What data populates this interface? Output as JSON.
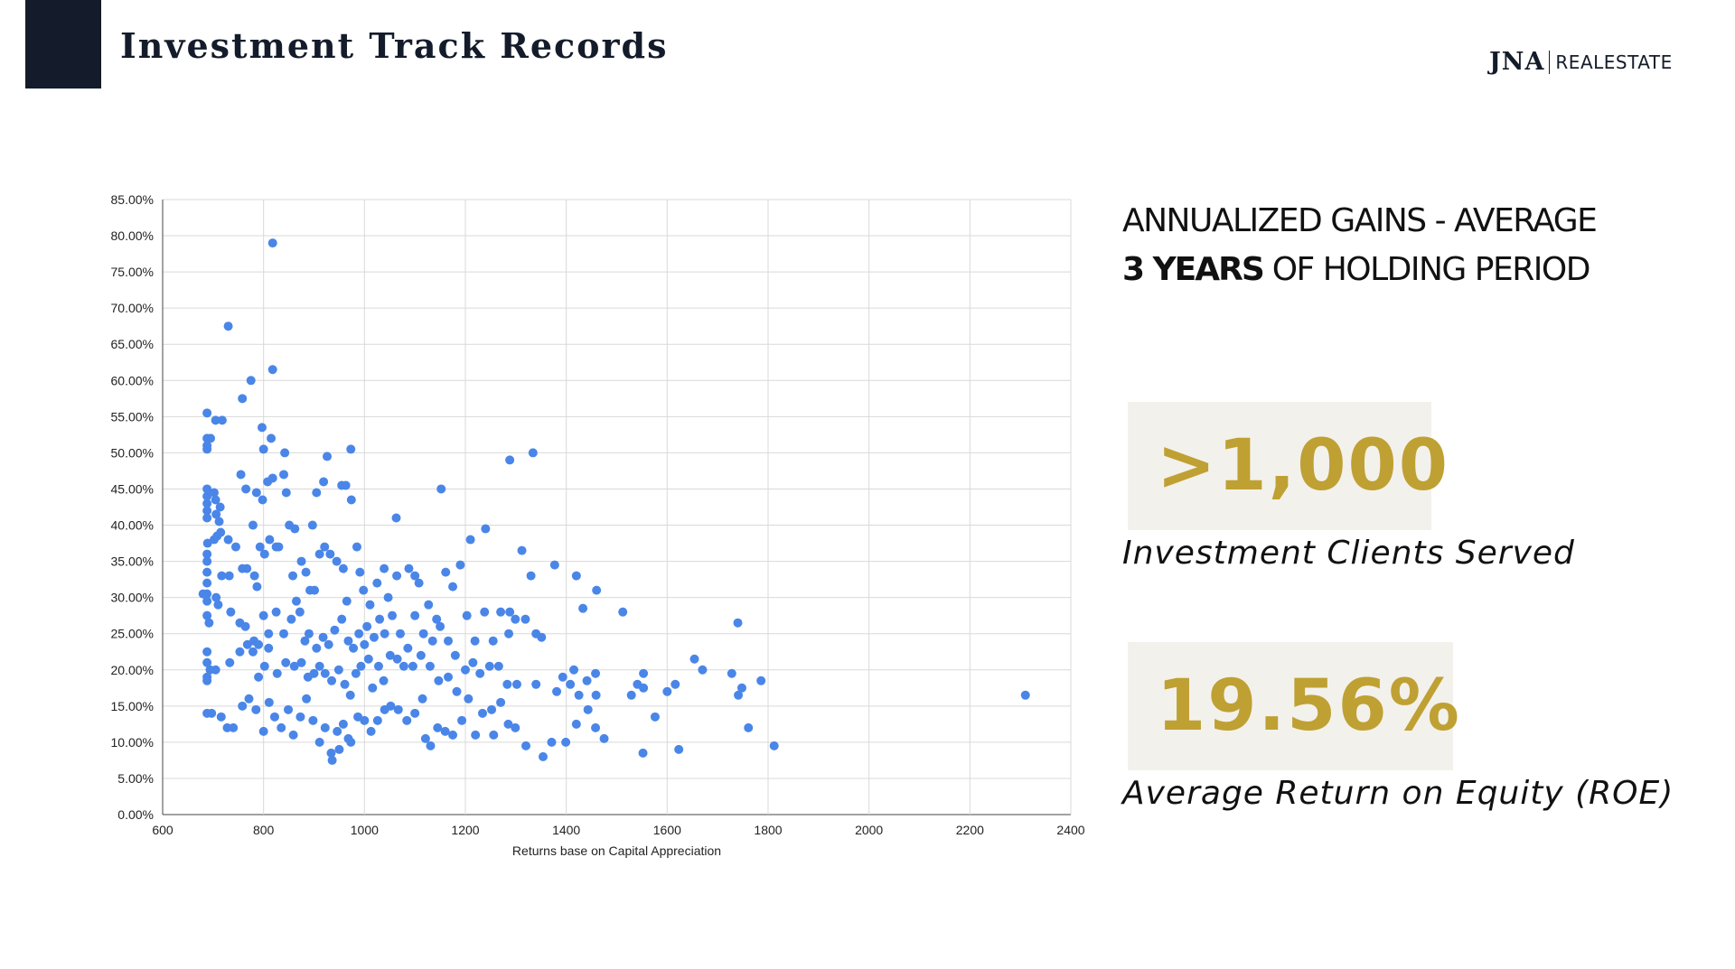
{
  "header": {
    "title": "Investment Track Records"
  },
  "logo": {
    "mark": "JNA",
    "word": "REALESTATE"
  },
  "headline": {
    "line1": "ANNUALIZED GAINS - AVERAGE",
    "line2_bold": "3 YEARS",
    "line2_rest": "OF HOLDING PERIOD"
  },
  "stats": [
    {
      "value": ">1,000",
      "label": "Investment Clients Served"
    },
    {
      "value": "19.56%",
      "label": "Average Return on Equity (ROE)"
    }
  ],
  "colors": {
    "navy": "#141c2b",
    "gold": "#bfa033",
    "stat_bg": "#f3f1eb",
    "point": "#4a86e8"
  },
  "chart_data": {
    "type": "scatter",
    "title": "",
    "xlabel": "Returns base on Capital Appreciation",
    "ylabel": "",
    "xlim": [
      600,
      2400
    ],
    "ylim": [
      0,
      85
    ],
    "x_ticks": [
      "600",
      "800",
      "1000",
      "1200",
      "1400",
      "1600",
      "1800",
      "2000",
      "2200",
      "2400"
    ],
    "y_ticks": [
      "0.00%",
      "5.00%",
      "10.00%",
      "15.00%",
      "20.00%",
      "25.00%",
      "30.00%",
      "35.00%",
      "40.00%",
      "45.00%",
      "50.00%",
      "55.00%",
      "60.00%",
      "65.00%",
      "70.00%",
      "75.00%",
      "80.00%",
      "85.00%"
    ],
    "grid": true,
    "legend": "none",
    "points": [
      [
        818,
        79
      ],
      [
        730,
        67.5
      ],
      [
        818,
        61.5
      ],
      [
        775,
        60
      ],
      [
        758,
        57.5
      ],
      [
        688,
        55.5
      ],
      [
        705,
        54.5
      ],
      [
        718,
        54.5
      ],
      [
        797,
        53.5
      ],
      [
        815,
        52
      ],
      [
        688,
        52
      ],
      [
        695,
        52
      ],
      [
        688,
        51
      ],
      [
        688,
        50.5
      ],
      [
        800,
        50.5
      ],
      [
        842,
        50
      ],
      [
        973,
        50.5
      ],
      [
        926,
        49.5
      ],
      [
        1288,
        49
      ],
      [
        1334,
        50
      ],
      [
        688,
        45
      ],
      [
        688,
        44
      ],
      [
        688,
        43
      ],
      [
        688,
        42
      ],
      [
        688,
        41
      ],
      [
        702,
        44.5
      ],
      [
        705,
        43.5
      ],
      [
        714,
        42.5
      ],
      [
        706,
        41.5
      ],
      [
        712,
        40.5
      ],
      [
        755,
        47
      ],
      [
        765,
        45
      ],
      [
        786,
        44.5
      ],
      [
        798,
        43.5
      ],
      [
        808,
        46
      ],
      [
        818,
        46.5
      ],
      [
        840,
        47
      ],
      [
        845,
        44.5
      ],
      [
        905,
        44.5
      ],
      [
        919,
        46
      ],
      [
        955,
        45.5
      ],
      [
        963,
        45.5
      ],
      [
        974,
        43.5
      ],
      [
        1152,
        45
      ],
      [
        1063,
        41
      ],
      [
        779,
        40
      ],
      [
        851,
        40
      ],
      [
        862,
        39.5
      ],
      [
        897,
        40
      ],
      [
        702,
        38
      ],
      [
        708,
        38.5
      ],
      [
        715,
        39
      ],
      [
        730,
        38
      ],
      [
        745,
        37
      ],
      [
        689,
        37.5
      ],
      [
        688,
        36
      ],
      [
        688,
        35
      ],
      [
        688,
        33.5
      ],
      [
        688,
        32
      ],
      [
        688,
        30.5
      ],
      [
        688,
        29.5
      ],
      [
        680,
        30.5
      ],
      [
        706,
        30
      ],
      [
        717,
        33
      ],
      [
        732,
        33
      ],
      [
        758,
        34
      ],
      [
        767,
        34
      ],
      [
        782,
        33
      ],
      [
        787,
        31.5
      ],
      [
        793,
        37
      ],
      [
        802,
        36
      ],
      [
        812,
        38
      ],
      [
        825,
        37
      ],
      [
        830,
        37
      ],
      [
        858,
        33
      ],
      [
        875,
        35
      ],
      [
        884,
        33.5
      ],
      [
        892,
        31
      ],
      [
        901,
        31
      ],
      [
        911,
        36
      ],
      [
        921,
        37
      ],
      [
        932,
        36
      ],
      [
        945,
        35
      ],
      [
        958,
        34
      ],
      [
        965,
        29.5
      ],
      [
        985,
        37
      ],
      [
        991,
        33.5
      ],
      [
        998,
        31
      ],
      [
        1011,
        29
      ],
      [
        1025,
        32
      ],
      [
        1039,
        34
      ],
      [
        1047,
        30
      ],
      [
        1064,
        33
      ],
      [
        1088,
        34
      ],
      [
        1100,
        33
      ],
      [
        1108,
        32
      ],
      [
        1127,
        29
      ],
      [
        1143,
        27
      ],
      [
        1161,
        33.5
      ],
      [
        1175,
        31.5
      ],
      [
        1190,
        34.5
      ],
      [
        1210,
        38
      ],
      [
        1240,
        39.5
      ],
      [
        1288,
        28
      ],
      [
        1312,
        36.5
      ],
      [
        1330,
        33
      ],
      [
        1377,
        34.5
      ],
      [
        1420,
        33
      ],
      [
        1433,
        28.5
      ],
      [
        1460,
        31
      ],
      [
        1512,
        28
      ],
      [
        1740,
        26.5
      ],
      [
        688,
        27.5
      ],
      [
        692,
        26.5
      ],
      [
        710,
        29
      ],
      [
        735,
        28
      ],
      [
        753,
        26.5
      ],
      [
        764,
        26
      ],
      [
        781,
        24
      ],
      [
        790,
        23.5
      ],
      [
        800,
        27.5
      ],
      [
        810,
        25
      ],
      [
        825,
        28
      ],
      [
        840,
        25
      ],
      [
        855,
        27
      ],
      [
        865,
        29.5
      ],
      [
        872,
        28
      ],
      [
        882,
        24
      ],
      [
        890,
        25
      ],
      [
        905,
        23
      ],
      [
        918,
        24.5
      ],
      [
        929,
        23.5
      ],
      [
        941,
        25.5
      ],
      [
        955,
        27
      ],
      [
        968,
        24
      ],
      [
        978,
        23
      ],
      [
        989,
        25
      ],
      [
        1000,
        23.5
      ],
      [
        1005,
        26
      ],
      [
        1019,
        24.5
      ],
      [
        1030,
        27
      ],
      [
        1040,
        25
      ],
      [
        1055,
        27.5
      ],
      [
        1071,
        25
      ],
      [
        1086,
        23
      ],
      [
        1100,
        27.5
      ],
      [
        1117,
        25
      ],
      [
        1135,
        24
      ],
      [
        1150,
        26
      ],
      [
        1166,
        24
      ],
      [
        1180,
        22
      ],
      [
        1203,
        27.5
      ],
      [
        1219,
        24
      ],
      [
        1238,
        28
      ],
      [
        1255,
        24
      ],
      [
        1270,
        28
      ],
      [
        1286,
        25
      ],
      [
        1299,
        27
      ],
      [
        1319,
        27
      ],
      [
        1340,
        25
      ],
      [
        1351,
        24.5
      ],
      [
        688,
        22.5
      ],
      [
        688,
        21
      ],
      [
        694,
        20
      ],
      [
        688,
        19
      ],
      [
        688,
        18.5
      ],
      [
        705,
        20
      ],
      [
        733,
        21
      ],
      [
        753,
        22.5
      ],
      [
        768,
        23.5
      ],
      [
        779,
        22.5
      ],
      [
        790,
        19
      ],
      [
        802,
        20.5
      ],
      [
        810,
        23
      ],
      [
        827,
        19.5
      ],
      [
        844,
        21
      ],
      [
        861,
        20.5
      ],
      [
        875,
        21
      ],
      [
        888,
        19
      ],
      [
        900,
        19.5
      ],
      [
        911,
        20.5
      ],
      [
        922,
        19.5
      ],
      [
        935,
        18.5
      ],
      [
        949,
        20
      ],
      [
        961,
        18
      ],
      [
        972,
        16.5
      ],
      [
        983,
        19.5
      ],
      [
        993,
        20.5
      ],
      [
        1008,
        21.5
      ],
      [
        1016,
        17.5
      ],
      [
        1028,
        20.5
      ],
      [
        1038,
        18.5
      ],
      [
        1051,
        22
      ],
      [
        1065,
        21.5
      ],
      [
        1078,
        20.5
      ],
      [
        1096,
        20.5
      ],
      [
        1112,
        22
      ],
      [
        1130,
        20.5
      ],
      [
        1147,
        18.5
      ],
      [
        1166,
        19
      ],
      [
        1183,
        17
      ],
      [
        1200,
        20
      ],
      [
        1215,
        21
      ],
      [
        1229,
        19.5
      ],
      [
        1248,
        20.5
      ],
      [
        1266,
        20.5
      ],
      [
        1283,
        18
      ],
      [
        1302,
        18
      ],
      [
        1340,
        18
      ],
      [
        1381,
        17
      ],
      [
        1393,
        19
      ],
      [
        1408,
        18
      ],
      [
        1415,
        20
      ],
      [
        1425,
        16.5
      ],
      [
        1441,
        18.5
      ],
      [
        1458,
        19.5
      ],
      [
        1529,
        16.5
      ],
      [
        1541,
        18
      ],
      [
        1553,
        19.5
      ],
      [
        1553,
        17.5
      ],
      [
        1600,
        17
      ],
      [
        1616,
        18
      ],
      [
        1654,
        21.5
      ],
      [
        1670,
        20
      ],
      [
        1728,
        19.5
      ],
      [
        1741,
        16.5
      ],
      [
        1748,
        17.5
      ],
      [
        1786,
        18.5
      ],
      [
        2310,
        16.5
      ],
      [
        688,
        14
      ],
      [
        697,
        14
      ],
      [
        716,
        13.5
      ],
      [
        728,
        12
      ],
      [
        740,
        12
      ],
      [
        758,
        15
      ],
      [
        771,
        16
      ],
      [
        785,
        14.5
      ],
      [
        800,
        11.5
      ],
      [
        811,
        15.5
      ],
      [
        822,
        13.5
      ],
      [
        835,
        12
      ],
      [
        849,
        14.5
      ],
      [
        859,
        11
      ],
      [
        873,
        13.5
      ],
      [
        885,
        16
      ],
      [
        898,
        13
      ],
      [
        911,
        10
      ],
      [
        922,
        12
      ],
      [
        934,
        8.5
      ],
      [
        946,
        11.5
      ],
      [
        958,
        12.5
      ],
      [
        973,
        10
      ],
      [
        987,
        13.5
      ],
      [
        1000,
        13
      ],
      [
        1013,
        11.5
      ],
      [
        1026,
        13
      ],
      [
        1040,
        14.5
      ],
      [
        1052,
        15
      ],
      [
        1067,
        14.5
      ],
      [
        1084,
        13
      ],
      [
        1100,
        14
      ],
      [
        1115,
        16
      ],
      [
        1131,
        9.5
      ],
      [
        1145,
        12
      ],
      [
        1160,
        11.5
      ],
      [
        1175,
        11
      ],
      [
        1193,
        13
      ],
      [
        1206,
        16
      ],
      [
        1220,
        11
      ],
      [
        1234,
        14
      ],
      [
        1252,
        14.5
      ],
      [
        1270,
        15.5
      ],
      [
        1285,
        12.5
      ],
      [
        1299,
        12
      ],
      [
        1320,
        9.5
      ],
      [
        1354,
        8
      ],
      [
        1371,
        10
      ],
      [
        1399,
        10
      ],
      [
        1420,
        12.5
      ],
      [
        1443,
        14.5
      ],
      [
        1458,
        12
      ],
      [
        1475,
        10.5
      ],
      [
        1552,
        8.5
      ],
      [
        1576,
        13.5
      ],
      [
        1623,
        9
      ],
      [
        1761,
        12
      ],
      [
        1812,
        9.5
      ],
      [
        936,
        7.5
      ],
      [
        950,
        9
      ],
      [
        968,
        10.5
      ],
      [
        1121,
        10.5
      ],
      [
        1256,
        11
      ],
      [
        1459,
        16.5
      ]
    ]
  }
}
